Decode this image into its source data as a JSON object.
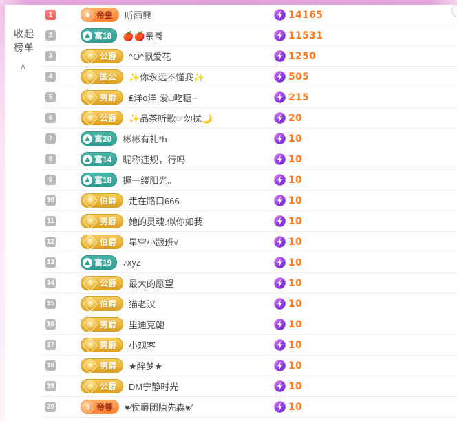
{
  "sidebar": {
    "collapse_label": "收起榜单",
    "chevron": "∧"
  },
  "colors": {
    "top_bar_pink": "#e0a0d8",
    "rank1_red": "#ee5858",
    "rank_gray": "#b9b9b9",
    "emperor_badge_orange": "#ff7a2e",
    "rich_badge_teal": "#35a99e",
    "noble_badge_gold": "#e5ab25",
    "value_orange": "#ff7b1f",
    "bolt_purple": "#8a2fe0"
  },
  "icons": {
    "chevron": "chevron-up-icon",
    "score": "lightning-bolt-icon"
  },
  "list": {
    "rows": [
      {
        "rank": "1",
        "badge": {
          "type": "emperor",
          "label": "帝皇",
          "icon_glyph": "◆"
        },
        "name": "听雨興",
        "value": "14165"
      },
      {
        "rank": "2",
        "badge": {
          "type": "rich",
          "label": "富18"
        },
        "name": "🍎🍎亲哥",
        "value": "11531"
      },
      {
        "rank": "3",
        "badge": {
          "type": "noble",
          "label": "公爵"
        },
        "name": "^O^飘爱花",
        "value": "1250"
      },
      {
        "rank": "4",
        "badge": {
          "type": "noble",
          "label": "国公"
        },
        "name": "✨你永远不懂我✨",
        "value": "505"
      },
      {
        "rank": "5",
        "badge": {
          "type": "noble",
          "label": "男爵"
        },
        "name": "₤洋o洋ͺ爱□吃糖~",
        "value": "215"
      },
      {
        "rank": "6",
        "badge": {
          "type": "noble",
          "label": "公爵"
        },
        "name": "✨品茶听歌☞勿扰🌙",
        "value": "20"
      },
      {
        "rank": "7",
        "badge": {
          "type": "rich",
          "label": "富20"
        },
        "name": "彬彬有礼*h",
        "value": "10"
      },
      {
        "rank": "8",
        "badge": {
          "type": "rich",
          "label": "富14"
        },
        "name": "昵称违规，行吗",
        "value": "10"
      },
      {
        "rank": "9",
        "badge": {
          "type": "rich",
          "label": "富18"
        },
        "name": "握一缕阳光。",
        "value": "10"
      },
      {
        "rank": "10",
        "badge": {
          "type": "noble",
          "label": "伯爵"
        },
        "name": "走在路口666",
        "value": "10"
      },
      {
        "rank": "11",
        "badge": {
          "type": "noble",
          "label": "男爵"
        },
        "name": "她的灵魂.似你如我",
        "value": "10"
      },
      {
        "rank": "12",
        "badge": {
          "type": "noble",
          "label": "伯爵"
        },
        "name": "星空小跟班√",
        "value": "10"
      },
      {
        "rank": "13",
        "badge": {
          "type": "rich",
          "label": "富19"
        },
        "name": "♪xyz",
        "value": "10"
      },
      {
        "rank": "14",
        "badge": {
          "type": "noble",
          "label": "公爵"
        },
        "name": "最大的愿望",
        "value": "10"
      },
      {
        "rank": "15",
        "badge": {
          "type": "noble",
          "label": "伯爵"
        },
        "name": "猫老汉",
        "value": "10"
      },
      {
        "rank": "16",
        "badge": {
          "type": "noble",
          "label": "男爵"
        },
        "name": "里迪克鲍",
        "value": "10"
      },
      {
        "rank": "17",
        "badge": {
          "type": "noble",
          "label": "男爵"
        },
        "name": "小观客",
        "value": "10"
      },
      {
        "rank": "18",
        "badge": {
          "type": "noble",
          "label": "男爵"
        },
        "name": "★醉梦★",
        "value": "10"
      },
      {
        "rank": "19",
        "badge": {
          "type": "noble",
          "label": "公爵"
        },
        "name": "DM宁静时光",
        "value": "10"
      },
      {
        "rank": "20",
        "badge": {
          "type": "emperor",
          "label": "帝尊",
          "icon_glyph": "3"
        },
        "name": "♥⁄侯爵团陳先森♥⁄",
        "value": "10"
      }
    ]
  }
}
